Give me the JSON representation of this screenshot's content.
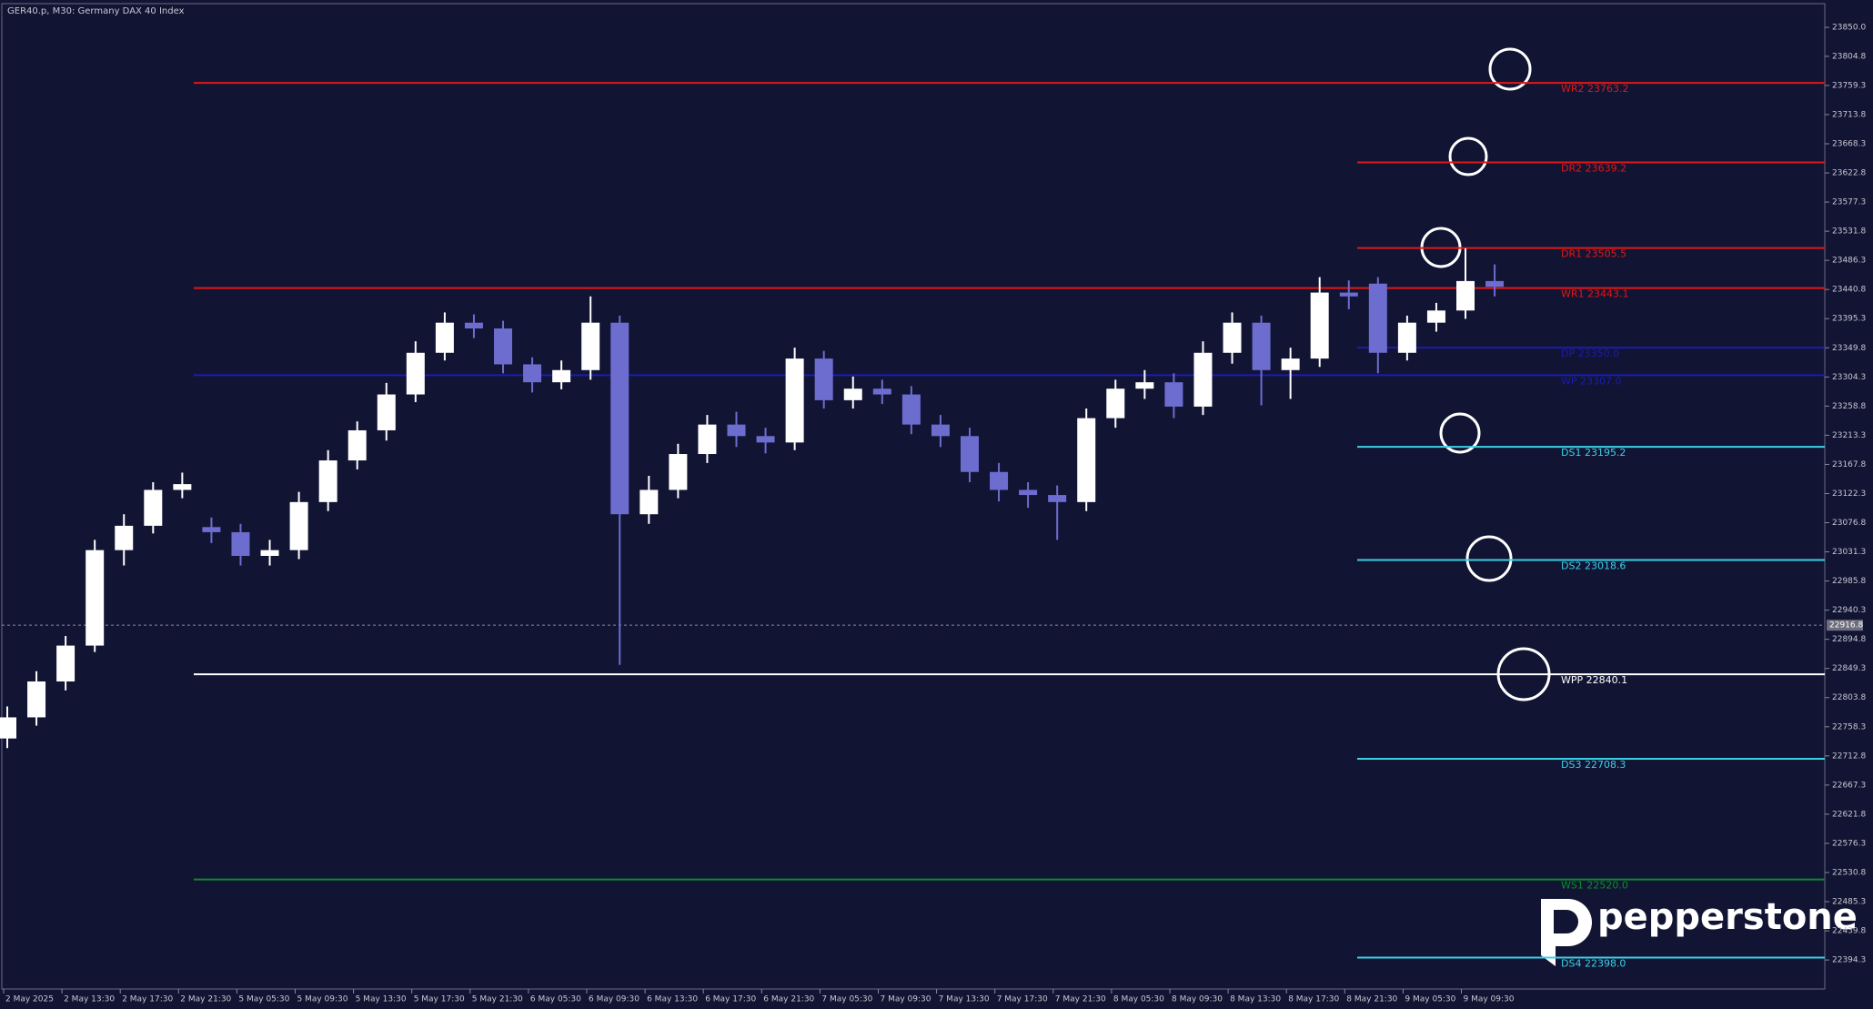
{
  "chart_data": {
    "type": "candlestick",
    "title": "GER40.p, M30:  Germany DAX 40 Index",
    "brand": "pepperstone",
    "bull_color": "#ffffff",
    "bear_color": "#6d6dcf",
    "open": [
      22740,
      22773,
      22829,
      22885,
      23034,
      23072,
      23128,
      23070,
      23062,
      23025,
      23034,
      23109,
      23174,
      23221,
      23277,
      23342,
      23389,
      23380,
      23324,
      23296,
      23315,
      23389,
      23090,
      23128,
      23184,
      23230,
      23212,
      23202,
      23333,
      23268,
      23286,
      23277,
      23230,
      23212,
      23156,
      23128,
      23120,
      23109,
      23240,
      23286,
      23296,
      23258,
      23342,
      23389,
      23315,
      23333,
      23436,
      23450,
      23342,
      23389,
      23408,
      23454
    ],
    "high": [
      22790,
      22845,
      22900,
      23050,
      23090,
      23140,
      23155,
      23085,
      23075,
      23050,
      23125,
      23190,
      23235,
      23295,
      23360,
      23405,
      23402,
      23392,
      23335,
      23330,
      23430,
      23400,
      23150,
      23200,
      23245,
      23250,
      23225,
      23350,
      23345,
      23305,
      23300,
      23290,
      23245,
      23225,
      23170,
      23140,
      23135,
      23255,
      23300,
      23315,
      23310,
      23360,
      23405,
      23400,
      23350,
      23460,
      23455,
      23460,
      23400,
      23420,
      23505,
      23480
    ],
    "low": [
      22725,
      22760,
      22815,
      22875,
      23010,
      23060,
      23115,
      23045,
      23010,
      23010,
      23020,
      23095,
      23160,
      23205,
      23265,
      23330,
      23365,
      23310,
      23280,
      23285,
      23300,
      22855,
      23075,
      23115,
      23170,
      23195,
      23185,
      23190,
      23255,
      23255,
      23262,
      23215,
      23195,
      23140,
      23110,
      23100,
      23050,
      23095,
      23225,
      23270,
      23240,
      23245,
      23325,
      23260,
      23270,
      23320,
      23410,
      23310,
      23330,
      23375,
      23395,
      23430
    ],
    "close": [
      22773,
      22829,
      22885,
      23034,
      23072,
      23128,
      23137,
      23062,
      23025,
      23034,
      23109,
      23174,
      23221,
      23277,
      23342,
      23389,
      23380,
      23324,
      23296,
      23315,
      23389,
      23090,
      23128,
      23184,
      23230,
      23212,
      23202,
      23333,
      23268,
      23286,
      23277,
      23230,
      23212,
      23156,
      23128,
      23120,
      23109,
      23240,
      23286,
      23296,
      23258,
      23342,
      23389,
      23315,
      23333,
      23436,
      23430,
      23342,
      23389,
      23408,
      23454,
      23445
    ],
    "ylim": [
      22349,
      23887
    ],
    "yticks": [
      {
        "value": 23850,
        "label": "23850.0"
      },
      23804.8,
      23759.3,
      23713.8,
      23668.3,
      23622.8,
      23577.3,
      23531.8,
      23486.3,
      23440.8,
      23395.3,
      23349.8,
      23304.3,
      23258.8,
      23213.3,
      23167.8,
      23122.3,
      23076.8,
      23031.3,
      22985.8,
      22940.3,
      22894.8,
      22849.3,
      22803.8,
      22758.3,
      22712.8,
      22667.3,
      22621.8,
      22576.3,
      22530.8,
      22485.3,
      22439.8,
      22394.3
    ],
    "xlabels": [
      "2 May 2025",
      "2 May 13:30",
      "2 May 17:30",
      "2 May 21:30",
      "5 May 05:30",
      "5 May 09:30",
      "5 May 13:30",
      "5 May 17:30",
      "5 May 21:30",
      "6 May 05:30",
      "6 May 09:30",
      "6 May 13:30",
      "6 May 17:30",
      "6 May 21:30",
      "7 May 05:30",
      "7 May 09:30",
      "7 May 13:30",
      "7 May 17:30",
      "7 May 21:30",
      "8 May 05:30",
      "8 May 09:30",
      "8 May 13:30",
      "8 May 17:30",
      "8 May 21:30",
      "9 May 05:30",
      "9 May 09:30"
    ],
    "current_price": {
      "value": 22916.8,
      "label": "22916.8"
    },
    "levels": [
      {
        "label": "WR2 23763.2",
        "value": 23763.2,
        "color": "#e01818"
      },
      {
        "label": "DR2 23639.2",
        "value": 23639.2,
        "color": "#e01818"
      },
      {
        "label": "DR1 23505.5",
        "value": 23505.5,
        "color": "#e01818"
      },
      {
        "label": "WR1 23443.1",
        "value": 23443.1,
        "color": "#e01818"
      },
      {
        "label": "DP 23350.0",
        "value": 23350.0,
        "color": "#1c1cae"
      },
      {
        "label": "WP 23307.0",
        "value": 23307.0,
        "color": "#1c1cae"
      },
      {
        "label": "DS1 23195.2",
        "value": 23195.2,
        "color": "#3cd0e6"
      },
      {
        "label": "DS2 23018.6",
        "value": 23018.6,
        "color": "#3cd0e6"
      },
      {
        "label": "WPP 22840.1",
        "value": 22840.1,
        "color": "#ffffff"
      },
      {
        "label": "DS3 22708.3",
        "value": 22708.3,
        "color": "#3cd0e6"
      },
      {
        "label": "WS1 22520.0",
        "value": 22520.0,
        "color": "#0d8a2e"
      },
      {
        "label": "DS4 22398.0",
        "value": 22398.0,
        "color": "#3cd0e6"
      }
    ]
  }
}
